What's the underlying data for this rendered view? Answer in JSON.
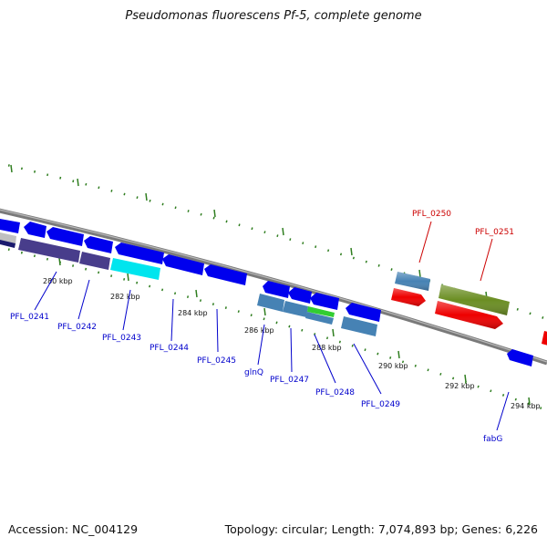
{
  "title": "Pseudomonas fluorescens Pf-5, complete genome",
  "footer": {
    "accession": "Accession: NC_004129",
    "summary": "Topology: circular; Length: 7,074,893 bp; Genes: 6,226"
  },
  "colors": {
    "forward_label": "#cc0000",
    "reverse_label": "#0000cc",
    "backbone": "#808080",
    "tick": "#2e7d1e"
  },
  "scale_ticks": [
    "280 kbp",
    "282 kbp",
    "284 kbp",
    "286 kbp",
    "288 kbp",
    "290 kbp",
    "292 kbp",
    "294 kbp"
  ],
  "gene_labels": {
    "forward": [
      "PFL_0250",
      "PFL_0251"
    ],
    "reverse": [
      "PFL_0241",
      "PFL_0242",
      "PFL_0243",
      "PFL_0244",
      "PFL_0245",
      "glnQ",
      "PFL_0247",
      "PFL_0248",
      "PFL_0249",
      "fabG"
    ]
  }
}
